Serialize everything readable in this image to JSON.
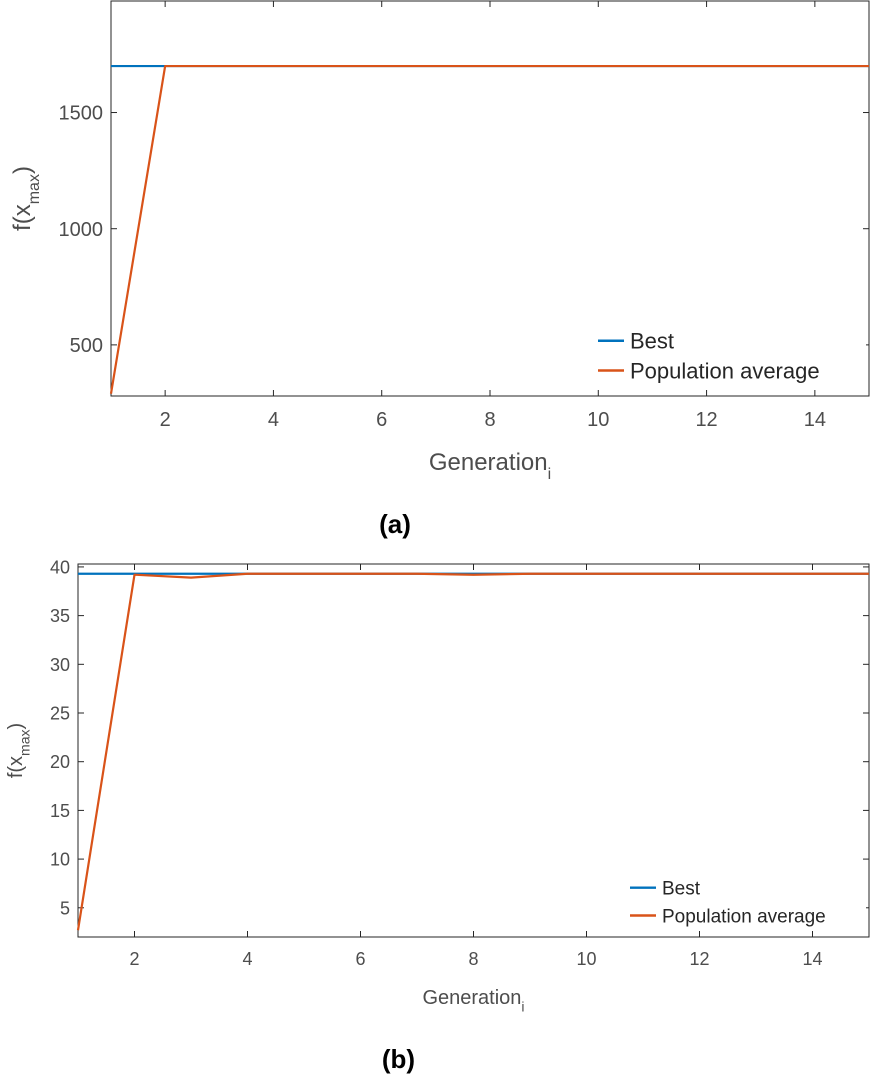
{
  "colors": {
    "best": "#0072BD",
    "population_average": "#D95319",
    "axis": "#4d4d4d"
  },
  "chart_data": [
    {
      "type": "line",
      "panel_label": "(a)",
      "xlabel": "Generation",
      "xlabel_subscript": "i",
      "ylabel": "f(x",
      "ylabel_subscript": "max",
      "ylabel_close": ")",
      "xlim": [
        1,
        15
      ],
      "ylim": [
        280,
        1980
      ],
      "xticks": [
        2,
        4,
        6,
        8,
        10,
        12,
        14
      ],
      "yticks": [
        500,
        1000,
        1500
      ],
      "legend_position": "bottom-right",
      "series": [
        {
          "name": "Best",
          "x": [
            1,
            2,
            3,
            4,
            5,
            6,
            7,
            8,
            9,
            10,
            11,
            12,
            13,
            14,
            15
          ],
          "y": [
            1700,
            1700,
            1700,
            1700,
            1700,
            1700,
            1700,
            1700,
            1700,
            1700,
            1700,
            1700,
            1700,
            1700,
            1700
          ]
        },
        {
          "name": "Population average",
          "x": [
            1,
            2,
            3,
            4,
            5,
            6,
            7,
            8,
            9,
            10,
            11,
            12,
            13,
            14,
            15
          ],
          "y": [
            290,
            1700,
            1700,
            1700,
            1700,
            1700,
            1700,
            1700,
            1700,
            1700,
            1700,
            1700,
            1700,
            1700,
            1700
          ]
        }
      ]
    },
    {
      "type": "line",
      "panel_label": "(b)",
      "xlabel": "Generation",
      "xlabel_subscript": "i",
      "ylabel": "f(x",
      "ylabel_subscript": "max",
      "ylabel_close": ")",
      "xlim": [
        1,
        15
      ],
      "ylim": [
        2,
        40.3
      ],
      "xticks": [
        2,
        4,
        6,
        8,
        10,
        12,
        14
      ],
      "yticks": [
        5,
        10,
        15,
        20,
        25,
        30,
        35,
        40
      ],
      "legend_position": "bottom-right",
      "series": [
        {
          "name": "Best",
          "x": [
            1,
            2,
            3,
            4,
            5,
            6,
            7,
            8,
            9,
            10,
            11,
            12,
            13,
            14,
            15
          ],
          "y": [
            39.3,
            39.3,
            39.3,
            39.3,
            39.3,
            39.3,
            39.3,
            39.3,
            39.3,
            39.3,
            39.3,
            39.3,
            39.3,
            39.3,
            39.3
          ]
        },
        {
          "name": "Population average",
          "x": [
            1,
            2,
            3,
            4,
            5,
            6,
            7,
            8,
            9,
            10,
            11,
            12,
            13,
            14,
            15
          ],
          "y": [
            2.7,
            39.2,
            38.9,
            39.3,
            39.3,
            39.3,
            39.3,
            39.2,
            39.3,
            39.3,
            39.3,
            39.3,
            39.3,
            39.3,
            39.3
          ]
        }
      ]
    }
  ]
}
